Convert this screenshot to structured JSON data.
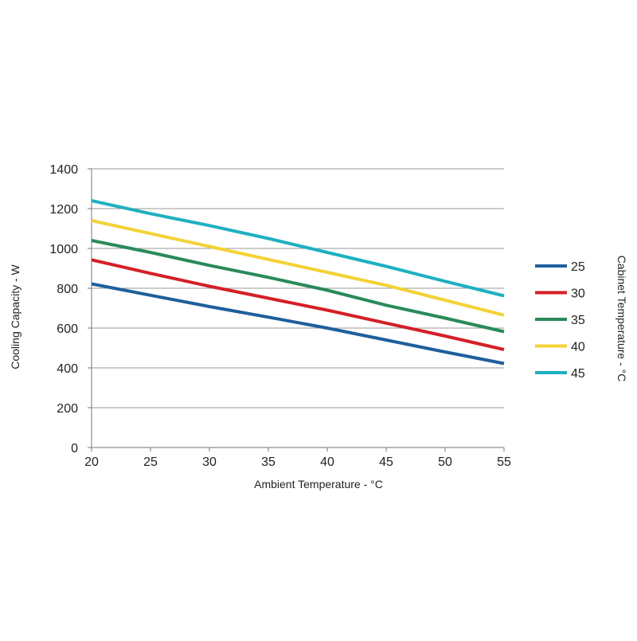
{
  "chart_data": {
    "type": "line",
    "title": "",
    "xlabel": "Ambient Temperature - °C",
    "ylabel": "Cooling Capacity - W",
    "legend_title": "Cabinet Temperature - °C",
    "legend_position": "right",
    "xlim": [
      20,
      55
    ],
    "ylim": [
      0,
      1400
    ],
    "x_ticks": [
      20,
      25,
      30,
      35,
      40,
      45,
      50,
      55
    ],
    "y_ticks": [
      0,
      200,
      400,
      600,
      800,
      1000,
      1200,
      1400
    ],
    "grid": {
      "horizontal": true,
      "vertical": false
    },
    "x": [
      20,
      25,
      30,
      35,
      40,
      45,
      50,
      55
    ],
    "series": [
      {
        "name": "25",
        "color": "#1f5f9c",
        "values": [
          822,
          765,
          708,
          655,
          600,
          540,
          480,
          422
        ]
      },
      {
        "name": "30",
        "color": "#d42027",
        "values": [
          943,
          875,
          810,
          750,
          690,
          625,
          560,
          492
        ]
      },
      {
        "name": "35",
        "color": "#2a8a5a",
        "values": [
          1040,
          980,
          915,
          855,
          790,
          715,
          650,
          582
        ]
      },
      {
        "name": "40",
        "color": "#f4d236",
        "values": [
          1140,
          1075,
          1010,
          945,
          880,
          815,
          740,
          665
        ]
      },
      {
        "name": "45",
        "color": "#1fb0c0",
        "values": [
          1240,
          1175,
          1115,
          1050,
          980,
          910,
          835,
          762
        ]
      }
    ]
  }
}
